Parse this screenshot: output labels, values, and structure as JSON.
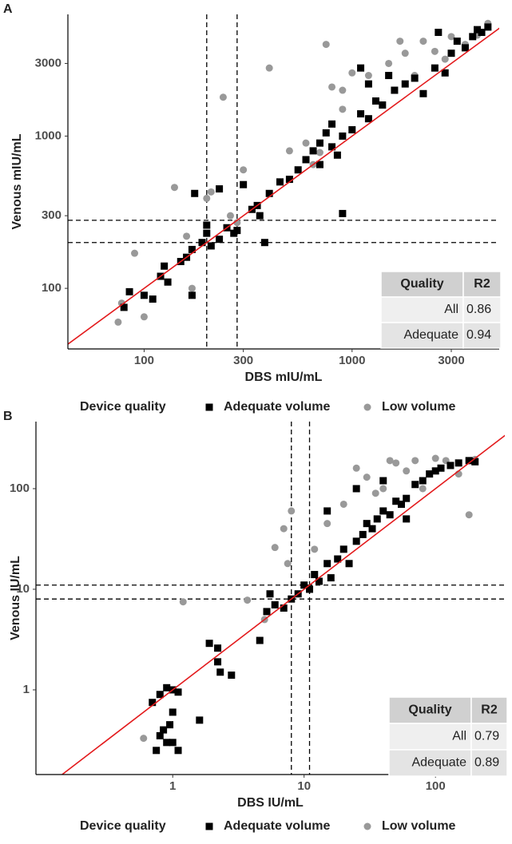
{
  "chart_data": [
    {
      "type": "scatter",
      "title": "A",
      "xscale": "log",
      "yscale": "log",
      "x_label": "DBS mIU/mL",
      "y_label": "Venous mIU/mL",
      "xlim": [
        43,
        5100
      ],
      "ylim": [
        40,
        6300
      ],
      "xticks": [
        100,
        300,
        1000,
        3000
      ],
      "yticks": [
        100,
        300,
        1000,
        3000
      ],
      "reference_lines": {
        "x": [
          200,
          280
        ],
        "y": [
          200,
          280
        ]
      },
      "identity_line": {
        "color": "#e31a1c"
      },
      "legend_title": "Device quality",
      "series": [
        {
          "name": "Adequate volume",
          "color": "#000000",
          "marker": "square",
          "x": [
            80,
            85,
            100,
            110,
            120,
            125,
            130,
            150,
            160,
            170,
            170,
            175,
            190,
            200,
            200,
            210,
            230,
            230,
            250,
            270,
            280,
            300,
            330,
            350,
            360,
            380,
            400,
            450,
            500,
            550,
            600,
            650,
            700,
            700,
            750,
            800,
            800,
            850,
            900,
            900,
            1000,
            1100,
            1200,
            1300,
            1500,
            1600,
            1800,
            2000,
            2200,
            2500,
            2800,
            3000,
            3200,
            3500,
            3800,
            4000,
            4200,
            4500,
            2600,
            1100,
            1200,
            1400
          ],
          "y": [
            75,
            95,
            90,
            85,
            120,
            140,
            110,
            150,
            160,
            90,
            180,
            420,
            200,
            230,
            260,
            190,
            210,
            450,
            250,
            230,
            240,
            480,
            330,
            350,
            300,
            200,
            420,
            500,
            520,
            600,
            700,
            800,
            900,
            650,
            1050,
            850,
            1200,
            750,
            310,
            1000,
            1100,
            1400,
            1300,
            1700,
            2500,
            2000,
            2200,
            2400,
            1900,
            2800,
            2600,
            3500,
            4200,
            3800,
            4500,
            5000,
            4800,
            5200,
            4800,
            2800,
            2200,
            1600
          ]
        },
        {
          "name": "Low volume",
          "color": "#999999",
          "marker": "circle",
          "x": [
            75,
            78,
            90,
            100,
            140,
            160,
            170,
            200,
            210,
            240,
            260,
            280,
            300,
            400,
            500,
            600,
            700,
            750,
            800,
            900,
            1000,
            1200,
            1500,
            1800,
            2000,
            2200,
            2500,
            2800,
            3000,
            3500,
            4000,
            4500,
            1700,
            900,
            650
          ],
          "y": [
            60,
            80,
            170,
            65,
            460,
            220,
            100,
            390,
            430,
            1800,
            300,
            270,
            600,
            2800,
            800,
            900,
            780,
            4000,
            2100,
            2000,
            2600,
            2500,
            3000,
            3500,
            2500,
            4200,
            3600,
            3200,
            4500,
            4000,
            4600,
            5500,
            4200,
            1500,
            650
          ]
        }
      ],
      "table": {
        "header": [
          "Quality",
          "R2"
        ],
        "rows": [
          [
            "All",
            0.86
          ],
          [
            "Adequate",
            0.94
          ]
        ]
      }
    },
    {
      "type": "scatter",
      "title": "B",
      "xscale": "log",
      "yscale": "log",
      "x_label": "DBS IU/mL",
      "y_label": "Venous IU/mL",
      "xlim": [
        0.091,
        337
      ],
      "ylim": [
        0.144,
        464
      ],
      "xticks": [
        1,
        10,
        100
      ],
      "yticks": [
        1,
        10,
        100
      ],
      "reference_lines": {
        "x": [
          8,
          11
        ],
        "y": [
          8,
          11
        ]
      },
      "identity_line": {
        "color": "#e31a1c"
      },
      "legend_title": "Device quality",
      "series": [
        {
          "name": "Adequate volume",
          "color": "#000000",
          "marker": "square",
          "x": [
            0.7,
            0.8,
            0.9,
            1.0,
            1.1,
            0.75,
            0.8,
            0.85,
            0.9,
            0.95,
            1.0,
            1.0,
            1.1,
            1.6,
            1.9,
            2.2,
            2.3,
            2.2,
            2.8,
            4.6,
            5.2,
            5.5,
            6,
            7,
            8,
            9,
            10,
            11,
            12,
            13,
            15,
            16,
            18,
            20,
            22,
            25,
            28,
            30,
            33,
            36,
            40,
            45,
            50,
            55,
            60,
            70,
            80,
            90,
            100,
            110,
            130,
            150,
            180,
            200,
            25,
            40,
            60,
            15
          ],
          "y": [
            0.75,
            0.9,
            1.05,
            1.0,
            0.95,
            0.25,
            0.35,
            0.4,
            0.3,
            0.45,
            0.6,
            0.3,
            0.25,
            0.5,
            2.9,
            1.9,
            1.5,
            2.6,
            1.4,
            3.1,
            6,
            9,
            7,
            6.5,
            8,
            9,
            11,
            10,
            14,
            12,
            18,
            13,
            20,
            25,
            18,
            30,
            35,
            45,
            40,
            50,
            60,
            55,
            75,
            70,
            80,
            110,
            120,
            140,
            150,
            160,
            170,
            180,
            190,
            185,
            100,
            120,
            50,
            60
          ]
        },
        {
          "name": "Low volume",
          "color": "#999999",
          "marker": "circle",
          "x": [
            0.6,
            1.2,
            3.7,
            5,
            6,
            7,
            7.5,
            8,
            12,
            15,
            20,
            25,
            30,
            35,
            40,
            50,
            60,
            80,
            100,
            120,
            150,
            180,
            200,
            45,
            70
          ],
          "y": [
            0.33,
            7.5,
            7.8,
            5,
            26,
            40,
            18,
            60,
            25,
            45,
            70,
            160,
            130,
            90,
            100,
            180,
            150,
            100,
            200,
            190,
            140,
            55,
            195,
            190,
            190
          ]
        }
      ],
      "table": {
        "header": [
          "Quality",
          "R2"
        ],
        "rows": [
          [
            "All",
            0.79
          ],
          [
            "Adequate",
            0.89
          ]
        ]
      }
    }
  ]
}
